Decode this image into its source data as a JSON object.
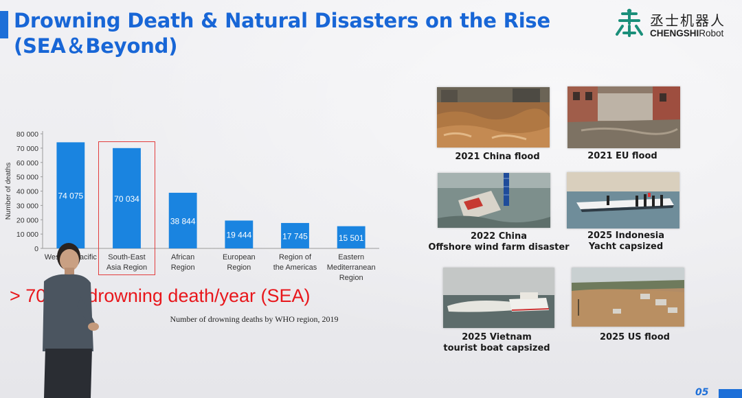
{
  "slide": {
    "title_line1": "Drowning Death & Natural Disasters on the Rise",
    "title_line2": "(SEA＆Beyond)",
    "accent_color": "#1d6fd8",
    "page_number": "05"
  },
  "logo": {
    "icon": "robot-logo-icon",
    "chinese": "丞士机器人",
    "english_bold": "CHENGSHI",
    "english_rest": "Robot"
  },
  "callout": {
    "text": "> 70 000 drowning death/year (SEA)",
    "color": "#e8161b"
  },
  "chart_data": {
    "type": "bar",
    "ylabel": "Number of deaths",
    "ylim": [
      0,
      80000
    ],
    "yticks": [
      "0",
      "10 000",
      "20 000",
      "30 000",
      "40 000",
      "50 000",
      "60 000",
      "70 000",
      "80 000"
    ],
    "categories": [
      [
        "Western Pacific"
      ],
      [
        "South-East",
        "Asia Region"
      ],
      [
        "African",
        "Region"
      ],
      [
        "European",
        "Region"
      ],
      [
        "Region of",
        "the Americas"
      ],
      [
        "Eastern",
        "Mediterranean",
        "Region"
      ]
    ],
    "values": [
      74075,
      70034,
      38844,
      19444,
      17745,
      15501
    ],
    "value_labels": [
      "74 075",
      "70 034",
      "38 844",
      "19 444",
      "17 745",
      "15 501"
    ],
    "highlight_index": 1,
    "bar_color": "#1a84e0",
    "caption": "Number of drowning deaths by WHO region, 2019",
    "grid": false
  },
  "disasters": [
    {
      "caption": [
        "2021 China flood"
      ],
      "icon": "muddy-flood-photo"
    },
    {
      "caption": [
        "2021 EU flood"
      ],
      "icon": "flooded-street-photo"
    },
    {
      "caption": [
        "2022 China",
        "Offshore wind farm disaster"
      ],
      "icon": "wind-farm-crane-photo"
    },
    {
      "caption": [
        "2025 Indonesia",
        "Yacht capsized"
      ],
      "icon": "capsized-yacht-photo"
    },
    {
      "caption": [
        "2025 Vietnam",
        "tourist boat capsized"
      ],
      "icon": "capsized-boat-photo"
    },
    {
      "caption": [
        "2025 US flood"
      ],
      "icon": "flooded-town-photo"
    }
  ]
}
